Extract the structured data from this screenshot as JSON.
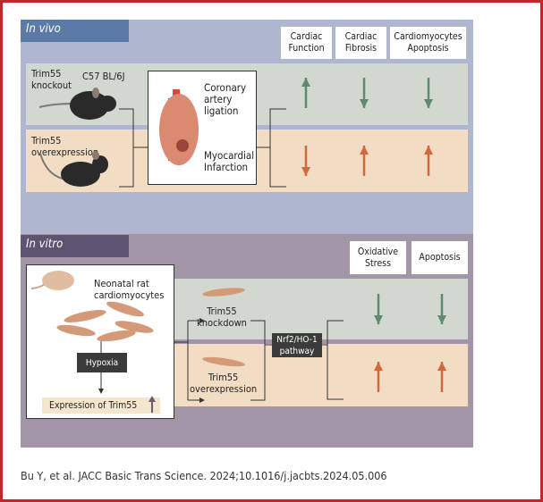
{
  "in_vivo": {
    "tab": "In vivo",
    "headers": [
      "Cardiac\nFunction",
      "Cardiac\nFibrosis",
      "Cardiomyocytes\nApoptosis"
    ],
    "knockout_label": "Trim55\nknockout",
    "strain": "C57 BL/6J",
    "overexpression_label": "Trim55\noverexpression",
    "procedure": "Coronary\nartery\nligation",
    "outcome": "Myocardial\nInfarction",
    "knockout_effects": [
      "up",
      "down",
      "down"
    ],
    "overexpression_effects": [
      "down",
      "up",
      "up"
    ]
  },
  "in_vitro": {
    "tab": "In vitro",
    "headers": [
      "Oxidative\nStress",
      "Apoptosis"
    ],
    "cells_label": "Neonatal rat\ncardiomyocytes",
    "hypoxia": "Hypoxia",
    "expression": "Expression of Trim55",
    "knockdown_label": "Trim55\nknockdown",
    "overexpression_label": "Trim55\noverexpression",
    "pathway": "Nrf2/HO-1\npathway",
    "knockdown_effects": [
      "down",
      "down"
    ],
    "overexpression_effects": [
      "up",
      "up"
    ]
  },
  "colors": {
    "border": "#c1272d",
    "in_vivo_panel": "#aeb6d0",
    "in_vitro_panel": "#a295a8",
    "green_row": "#d2d7cf",
    "orange_row": "#f2dcc4",
    "green_arrow": "#5e8a6e",
    "orange_arrow": "#d2683c"
  },
  "caption": "Bu Y, et al. JACC Basic Trans Science. 2024;10.1016/j.jacbts.2024.05.006"
}
